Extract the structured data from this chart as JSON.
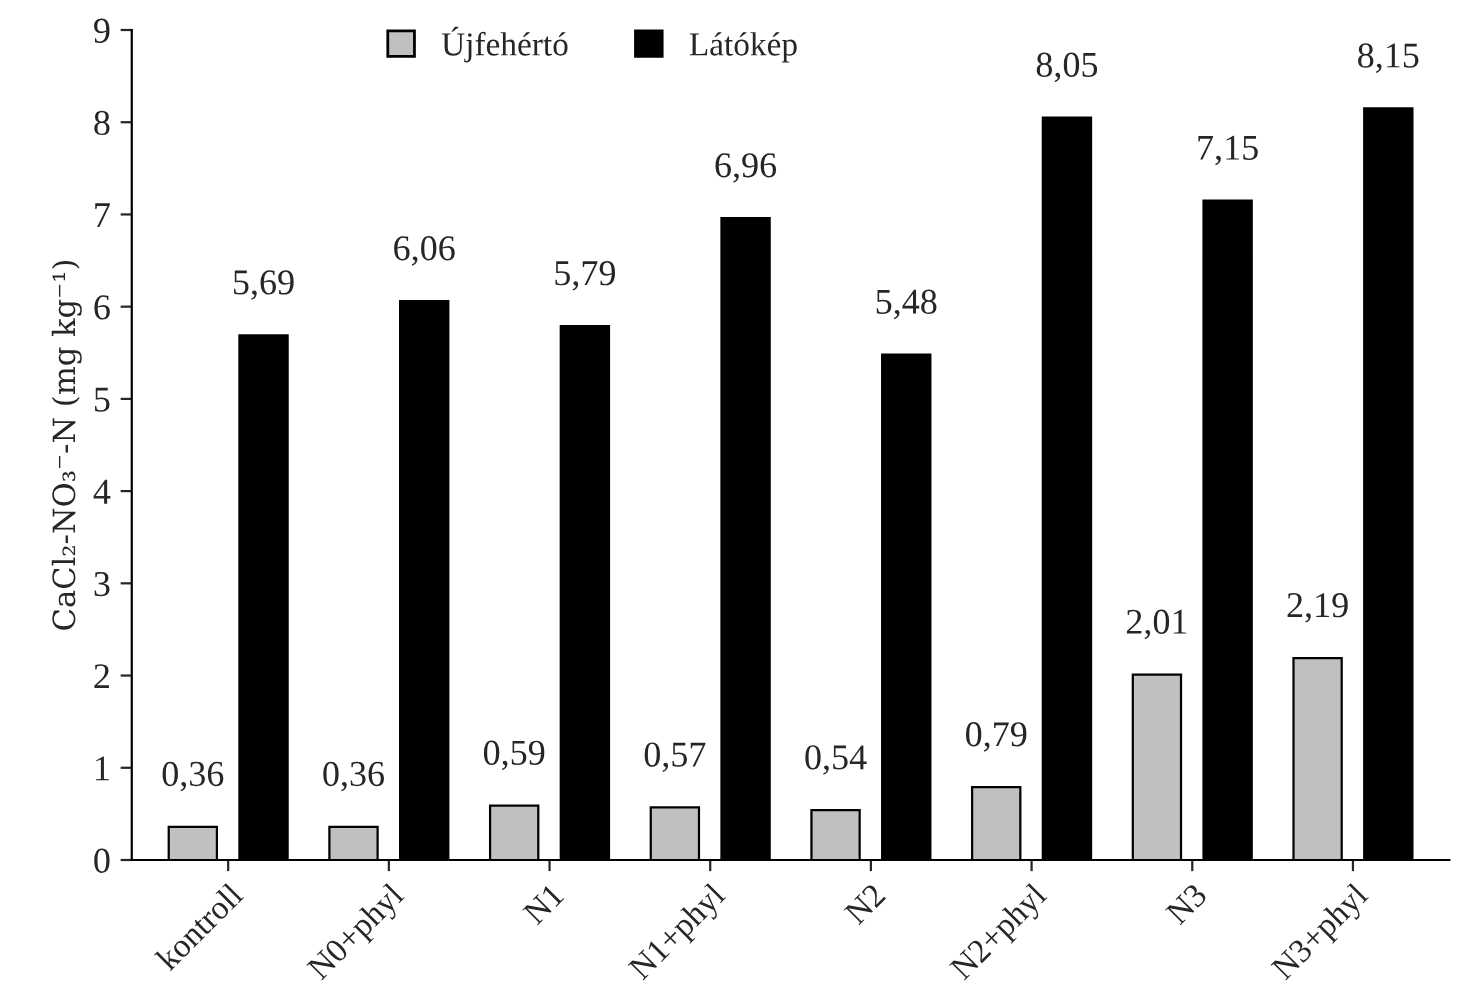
{
  "chart_data": {
    "type": "bar",
    "ylabel": "CaCl₂-NO₃⁻-N (mg kg⁻¹)",
    "categories": [
      "kontroll",
      "N0+phyl",
      "N1",
      "N1+phyl",
      "N2",
      "N2+phyl",
      "N3",
      "N3+phyl"
    ],
    "series": [
      {
        "name": "Újfehértó",
        "color": "#c0c0c0",
        "values": [
          0.36,
          0.36,
          0.59,
          0.57,
          0.54,
          0.79,
          2.01,
          2.19
        ],
        "value_labels": [
          "0,36",
          "0,36",
          "0,59",
          "0,57",
          "0,54",
          "0,79",
          "2,01",
          "2,19"
        ]
      },
      {
        "name": "Látókép",
        "color": "#000000",
        "values": [
          5.69,
          6.06,
          5.79,
          6.96,
          5.48,
          8.05,
          7.15,
          8.15
        ],
        "value_labels": [
          "5,69",
          "6,06",
          "5,79",
          "6,96",
          "5,48",
          "8,05",
          "7,15",
          "8,15"
        ]
      }
    ],
    "ylim": [
      0,
      9
    ],
    "yticks": [
      0,
      1,
      2,
      3,
      4,
      5,
      6,
      7,
      8,
      9
    ],
    "grid": false,
    "legend": "top"
  }
}
